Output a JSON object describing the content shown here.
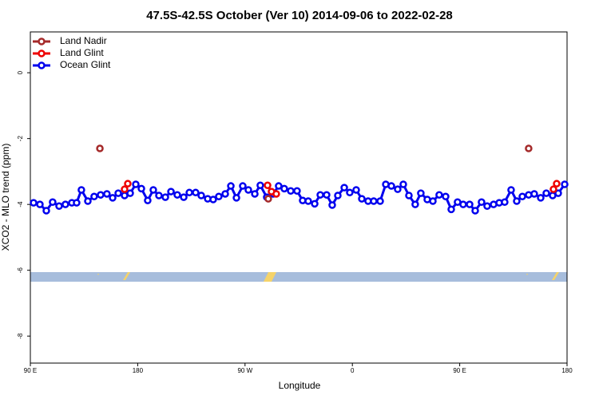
{
  "chart_data": {
    "type": "line",
    "title": "47.5S-42.5S October (Ver 10)   2014-09-06 to 2022-02-28",
    "x_label": "Longitude",
    "y_label": "XCO2 - MLO trend (ppm)",
    "xlim": [
      90,
      540
    ],
    "xticks": [
      {
        "value": 90,
        "label": "90 E"
      },
      180,
      {
        "value": 270,
        "label": "90 W"
      },
      {
        "value": 360,
        "label": "0"
      },
      {
        "value": 450,
        "label": "90 E"
      },
      {
        "value": 540,
        "label": "180"
      }
    ],
    "ylim": [
      -8.82,
      1.24
    ],
    "yticks": [
      0,
      -2,
      -4,
      -6,
      -8
    ],
    "legend": "top-left",
    "series": [
      {
        "name": "Land Nadir",
        "color": "#a52a2a",
        "x": [
          148.3,
          null,
          289.5,
          null,
          507.8
        ],
        "values": [
          -2.3,
          null,
          -3.83,
          null,
          -2.3
        ]
      },
      {
        "name": "Land Glint",
        "color": "#ee0000",
        "x": [
          169.0,
          171.7,
          null,
          288.9,
          292.2,
          296.2,
          null,
          528.6,
          531.3
        ],
        "values": [
          -3.54,
          -3.37,
          null,
          -3.42,
          -3.61,
          -3.68,
          null,
          -3.54,
          -3.37
        ]
      },
      {
        "name": "Ocean Glint",
        "color": "#0000ee",
        "x": [
          92.7,
          98.0,
          103.4,
          108.7,
          114.1,
          119.4,
          124.8,
          128.8,
          132.8,
          138.2,
          143.5,
          148.9,
          154.2,
          159.0,
          163.7,
          169.0,
          173.7,
          178.4,
          183.1,
          188.4,
          193.1,
          197.8,
          203.2,
          207.9,
          213.2,
          218.6,
          223.3,
          228.6,
          233.3,
          238.7,
          243.3,
          248.0,
          253.4,
          258.1,
          262.8,
          268.1,
          272.8,
          278.2,
          282.8,
          288.2,
          293.6,
          298.2,
          302.9,
          308.3,
          313.6,
          318.3,
          323.0,
          328.4,
          333.1,
          338.4,
          343.1,
          347.8,
          353.2,
          357.8,
          363.2,
          367.9,
          373.2,
          377.9,
          383.3,
          388.0,
          392.7,
          398.0,
          402.7,
          407.4,
          412.7,
          417.4,
          422.8,
          427.5,
          432.8,
          438.2,
          442.9,
          448.2,
          452.9,
          458.3,
          463.0,
          468.3,
          473.0,
          478.4,
          483.1,
          487.7,
          493.1,
          497.8,
          502.5,
          507.8,
          512.5,
          517.9,
          522.6,
          527.9,
          532.6,
          538.0
        ],
        "values": [
          -3.95,
          -4.0,
          -4.19,
          -3.93,
          -4.05,
          -4.0,
          -3.95,
          -3.95,
          -3.56,
          -3.9,
          -3.76,
          -3.71,
          -3.68,
          -3.8,
          -3.66,
          -3.73,
          -3.66,
          -3.39,
          -3.52,
          -3.88,
          -3.56,
          -3.73,
          -3.78,
          -3.61,
          -3.71,
          -3.78,
          -3.64,
          -3.64,
          -3.73,
          -3.83,
          -3.85,
          -3.76,
          -3.68,
          -3.44,
          -3.8,
          -3.44,
          -3.56,
          -3.68,
          -3.42,
          -3.78,
          -3.68,
          -3.44,
          -3.52,
          -3.59,
          -3.59,
          -3.88,
          -3.9,
          -3.98,
          -3.71,
          -3.71,
          -4.02,
          -3.73,
          -3.49,
          -3.64,
          -3.56,
          -3.83,
          -3.9,
          -3.9,
          -3.9,
          -3.39,
          -3.44,
          -3.54,
          -3.39,
          -3.73,
          -4.0,
          -3.66,
          -3.85,
          -3.9,
          -3.71,
          -3.76,
          -4.15,
          -3.93,
          -4.0,
          -4.0,
          -4.19,
          -3.93,
          -4.05,
          -4.0,
          -3.95,
          -3.93,
          -3.56,
          -3.9,
          -3.76,
          -3.71,
          -3.68,
          -3.8,
          -3.66,
          -3.73,
          -3.66,
          -3.39
        ]
      }
    ]
  }
}
